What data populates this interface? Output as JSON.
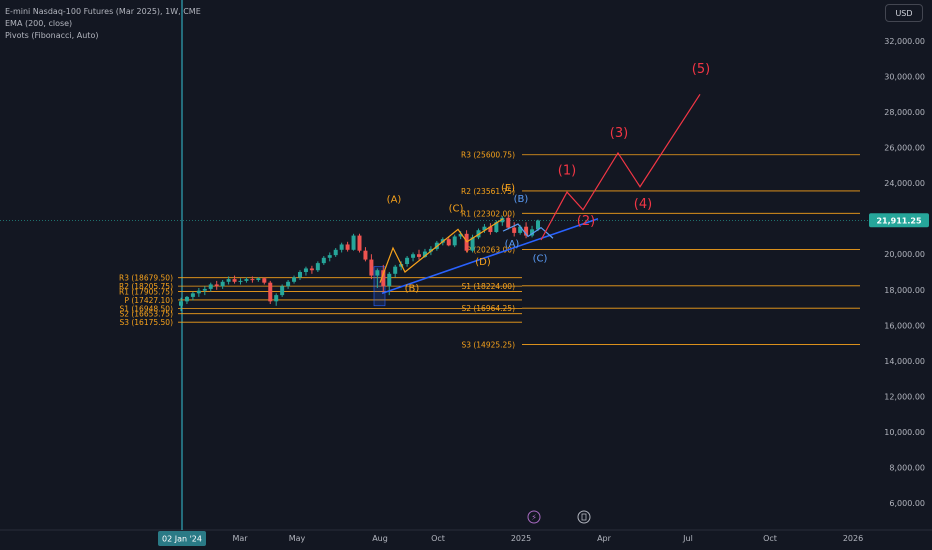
{
  "legend": {
    "title": "E-mini Nasdaq-100 Futures (Mar 2025), 1W, CME",
    "ema": "EMA (200, close)",
    "pivots": "Pivots (Fibonacci, Auto)"
  },
  "currency": "USD",
  "price_tag": "21,911.25",
  "date_tag": "02 Jan '24",
  "colors": {
    "background": "#131722",
    "up": "#26a69a",
    "down": "#ef5350",
    "pivot": "#f7a21b",
    "wave_orange": "#f7a21b",
    "wave_blue": "#5b9cf6",
    "wave_red": "#f23645",
    "crosshair": "#35c3d6",
    "trendline": "#2962ff",
    "event_icon": "#a86ac1"
  },
  "chart_data": {
    "type": "candlestick",
    "y_ticks": [
      "32,000.00",
      "30,000.00",
      "28,000.00",
      "26,000.00",
      "24,000.00",
      "22,000.00",
      "20,000.00",
      "18,000.00",
      "16,000.00",
      "14,000.00",
      "12,000.00",
      "10,000.00",
      "8,000.00",
      "6,000.00"
    ],
    "y_range": [
      4500,
      34000
    ],
    "x_ticks": [
      "Mar",
      "May",
      "Aug",
      "Oct",
      "2025",
      "Apr",
      "Jul",
      "Oct",
      "2026"
    ],
    "candles": [
      {
        "o": 17100,
        "h": 17550,
        "l": 16800,
        "c": 17350
      },
      {
        "o": 17350,
        "h": 17650,
        "l": 17200,
        "c": 17600
      },
      {
        "o": 17600,
        "h": 17900,
        "l": 17400,
        "c": 17800
      },
      {
        "o": 17800,
        "h": 18100,
        "l": 17600,
        "c": 17950
      },
      {
        "o": 17950,
        "h": 18200,
        "l": 17700,
        "c": 18050
      },
      {
        "o": 18050,
        "h": 18400,
        "l": 17900,
        "c": 18300
      },
      {
        "o": 18300,
        "h": 18500,
        "l": 18000,
        "c": 18200
      },
      {
        "o": 18200,
        "h": 18550,
        "l": 18050,
        "c": 18450
      },
      {
        "o": 18450,
        "h": 18750,
        "l": 18300,
        "c": 18600
      },
      {
        "o": 18600,
        "h": 18800,
        "l": 18350,
        "c": 18450
      },
      {
        "o": 18450,
        "h": 18650,
        "l": 18300,
        "c": 18500
      },
      {
        "o": 18500,
        "h": 18700,
        "l": 18400,
        "c": 18600
      },
      {
        "o": 18600,
        "h": 18750,
        "l": 18400,
        "c": 18550
      },
      {
        "o": 18550,
        "h": 18700,
        "l": 18450,
        "c": 18650
      },
      {
        "o": 18650,
        "h": 18700,
        "l": 18300,
        "c": 18400
      },
      {
        "o": 18400,
        "h": 18500,
        "l": 17200,
        "c": 17350
      },
      {
        "o": 17350,
        "h": 17800,
        "l": 17100,
        "c": 17700
      },
      {
        "o": 17700,
        "h": 18300,
        "l": 17600,
        "c": 18200
      },
      {
        "o": 18200,
        "h": 18550,
        "l": 18050,
        "c": 18450
      },
      {
        "o": 18450,
        "h": 18800,
        "l": 18350,
        "c": 18700
      },
      {
        "o": 18700,
        "h": 19100,
        "l": 18550,
        "c": 19000
      },
      {
        "o": 19000,
        "h": 19300,
        "l": 18800,
        "c": 19200
      },
      {
        "o": 19200,
        "h": 19350,
        "l": 18900,
        "c": 19100
      },
      {
        "o": 19100,
        "h": 19600,
        "l": 19000,
        "c": 19500
      },
      {
        "o": 19500,
        "h": 19900,
        "l": 19400,
        "c": 19800
      },
      {
        "o": 19800,
        "h": 20100,
        "l": 19600,
        "c": 19950
      },
      {
        "o": 19950,
        "h": 20350,
        "l": 19850,
        "c": 20250
      },
      {
        "o": 20250,
        "h": 20650,
        "l": 20100,
        "c": 20550
      },
      {
        "o": 20550,
        "h": 20700,
        "l": 20150,
        "c": 20250
      },
      {
        "o": 20250,
        "h": 21150,
        "l": 20200,
        "c": 21050
      },
      {
        "o": 21050,
        "h": 21150,
        "l": 20100,
        "c": 20200
      },
      {
        "o": 20200,
        "h": 20400,
        "l": 19600,
        "c": 19700
      },
      {
        "o": 19700,
        "h": 20000,
        "l": 18600,
        "c": 18800
      },
      {
        "o": 18800,
        "h": 19200,
        "l": 18100,
        "c": 19100
      },
      {
        "o": 19100,
        "h": 19400,
        "l": 17800,
        "c": 18200
      },
      {
        "o": 18200,
        "h": 19000,
        "l": 17700,
        "c": 18900
      },
      {
        "o": 18900,
        "h": 19400,
        "l": 18700,
        "c": 19300
      },
      {
        "o": 19300,
        "h": 19600,
        "l": 19100,
        "c": 19450
      },
      {
        "o": 19450,
        "h": 19900,
        "l": 19300,
        "c": 19800
      },
      {
        "o": 19800,
        "h": 20100,
        "l": 19600,
        "c": 20000
      },
      {
        "o": 20000,
        "h": 20250,
        "l": 19700,
        "c": 19850
      },
      {
        "o": 19850,
        "h": 20300,
        "l": 19800,
        "c": 20150
      },
      {
        "o": 20150,
        "h": 20450,
        "l": 19950,
        "c": 20300
      },
      {
        "o": 20300,
        "h": 20750,
        "l": 20200,
        "c": 20650
      },
      {
        "o": 20650,
        "h": 20950,
        "l": 20500,
        "c": 20850
      },
      {
        "o": 20850,
        "h": 21000,
        "l": 20450,
        "c": 20500
      },
      {
        "o": 20500,
        "h": 21100,
        "l": 20400,
        "c": 21000
      },
      {
        "o": 21000,
        "h": 21300,
        "l": 20850,
        "c": 21150
      },
      {
        "o": 21150,
        "h": 21350,
        "l": 20100,
        "c": 20200
      },
      {
        "o": 20200,
        "h": 21100,
        "l": 20100,
        "c": 20950
      },
      {
        "o": 20950,
        "h": 21450,
        "l": 20850,
        "c": 21350
      },
      {
        "o": 21350,
        "h": 21700,
        "l": 21200,
        "c": 21550
      },
      {
        "o": 21550,
        "h": 21750,
        "l": 21100,
        "c": 21250
      },
      {
        "o": 21250,
        "h": 21900,
        "l": 21200,
        "c": 21800
      },
      {
        "o": 21800,
        "h": 22150,
        "l": 21600,
        "c": 22050
      },
      {
        "o": 22050,
        "h": 22200,
        "l": 21400,
        "c": 21500
      },
      {
        "o": 21500,
        "h": 21800,
        "l": 21000,
        "c": 21200
      },
      {
        "o": 21200,
        "h": 21650,
        "l": 21100,
        "c": 21550
      },
      {
        "o": 21550,
        "h": 21800,
        "l": 20900,
        "c": 21050
      },
      {
        "o": 21050,
        "h": 21600,
        "l": 20950,
        "c": 21400
      },
      {
        "o": 21400,
        "h": 21950,
        "l": 21300,
        "c": 21900
      }
    ],
    "pivot_levels_2024": [
      {
        "label": "R3 (18679.50)",
        "value": 18679.5
      },
      {
        "label": "R2 (18205.75)",
        "value": 18205.75
      },
      {
        "label": "R1 (17905.75)",
        "value": 17905.75
      },
      {
        "label": "P (17427.10)",
        "value": 17427.1
      },
      {
        "label": "S1 (16948.50)",
        "value": 16948.5
      },
      {
        "label": "S2 (16653.75)",
        "value": 16653.75
      },
      {
        "label": "S3 (16175.50)",
        "value": 16175.5
      }
    ],
    "pivot_levels_2025": [
      {
        "label": "R3 (25600.75)",
        "value": 25600.75
      },
      {
        "label": "R2 (23561.75)",
        "value": 23561.75
      },
      {
        "label": "R1 (22302.00)",
        "value": 22302.0
      },
      {
        "label": "P (20263.00)",
        "value": 20263.0
      },
      {
        "label": "S1 (18224.00)",
        "value": 18224.0
      },
      {
        "label": "S2 (16964.25)",
        "value": 16964.25
      },
      {
        "label": "S3 (14925.25)",
        "value": 14925.25
      }
    ],
    "wave_labels": {
      "orange": [
        "(A)",
        "(B)",
        "(C)",
        "(D)",
        "(E)"
      ],
      "blue": [
        "(B)",
        "(A)",
        "(C)"
      ],
      "red": [
        "(1)",
        "(2)",
        "(3)",
        "(4)",
        "(5)"
      ]
    },
    "current_price": 21911.25
  }
}
